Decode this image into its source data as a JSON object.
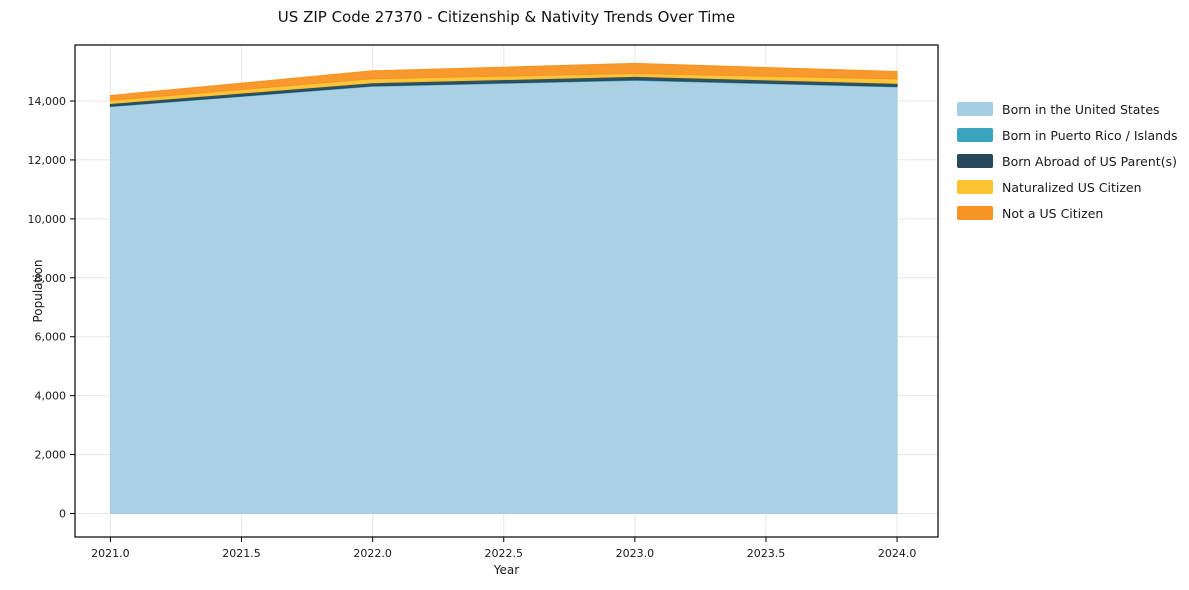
{
  "chart_data": {
    "type": "area",
    "stacked": true,
    "title": "US ZIP Code 27370 - Citizenship & Nativity Trends Over Time",
    "xlabel": "Year",
    "ylabel": "Population",
    "x": [
      2021,
      2022,
      2023,
      2024
    ],
    "series": [
      {
        "name": "Born in the United States",
        "color": "#a6cee3",
        "values": [
          13810,
          14500,
          14700,
          14480
        ]
      },
      {
        "name": "Born in Puerto Rico / Islands",
        "color": "#39a4c0",
        "values": [
          15,
          15,
          20,
          15
        ]
      },
      {
        "name": "Born Abroad of US Parent(s)",
        "color": "#26485a",
        "values": [
          90,
          105,
          115,
          105
        ]
      },
      {
        "name": "Naturalized US Citizen",
        "color": "#fcc330",
        "values": [
          110,
          135,
          100,
          150
        ]
      },
      {
        "name": "Not a US Citizen",
        "color": "#f79422",
        "values": [
          160,
          270,
          340,
          250
        ]
      }
    ],
    "xticks": {
      "values": [
        2021.0,
        2021.5,
        2022.0,
        2022.5,
        2023.0,
        2023.5,
        2024.0
      ],
      "labels": [
        "2021.0",
        "2021.5",
        "2022.0",
        "2022.5",
        "2023.0",
        "2023.5",
        "2024.0"
      ]
    },
    "yticks": {
      "values": [
        0,
        2000,
        4000,
        6000,
        8000,
        10000,
        12000,
        14000
      ],
      "labels": [
        "0",
        "2,000",
        "4,000",
        "6,000",
        "8,000",
        "10,000",
        "12,000",
        "14,000"
      ]
    },
    "xlim": [
      2020.87,
      2024.16
    ],
    "ylim": [
      -800,
      15900
    ],
    "grid": true,
    "legend_position": "right-outside"
  },
  "style_colors": {
    "grid": "#e7e7e7",
    "spine": "#000000",
    "tick_text": "#1a1a1a"
  }
}
